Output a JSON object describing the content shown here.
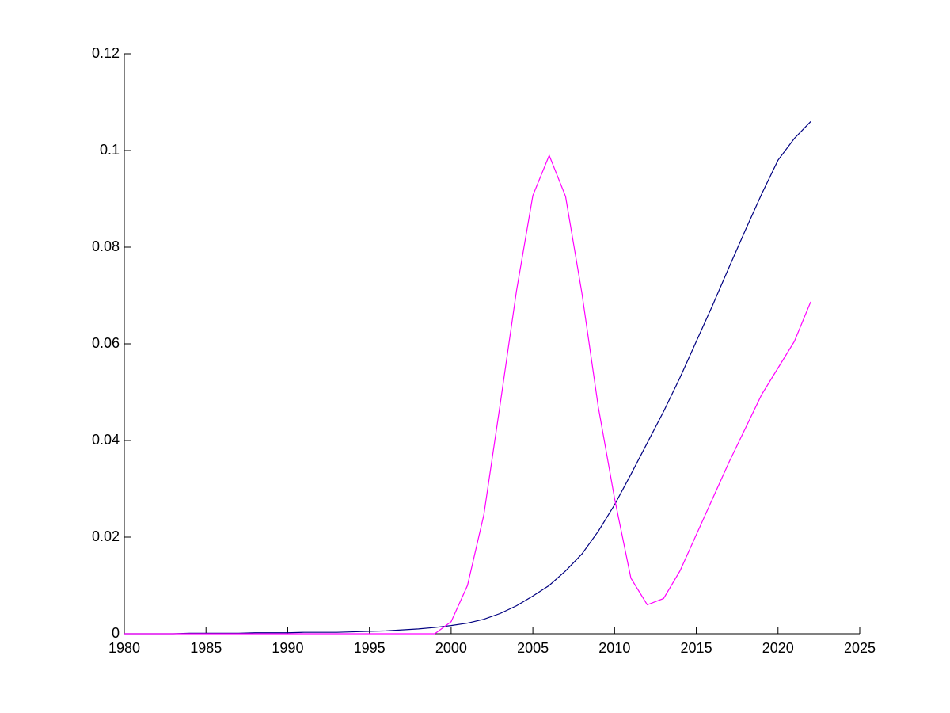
{
  "chart_data": {
    "type": "line",
    "x": [
      1980,
      1981,
      1982,
      1983,
      1984,
      1985,
      1986,
      1987,
      1988,
      1989,
      1990,
      1991,
      1992,
      1993,
      1994,
      1995,
      1996,
      1997,
      1998,
      1999,
      2000,
      2001,
      2002,
      2003,
      2004,
      2005,
      2006,
      2007,
      2008,
      2009,
      2010,
      2011,
      2012,
      2013,
      2014,
      2015,
      2016,
      2017,
      2018,
      2019,
      2020,
      2021,
      2022
    ],
    "series": [
      {
        "color": "#000080",
        "values": [
          0,
          0,
          0,
          0,
          0.0001,
          0.0001,
          0.0001,
          0.0001,
          0.0002,
          0.0002,
          0.0002,
          0.0003,
          0.0003,
          0.0003,
          0.0004,
          0.0005,
          0.0006,
          0.0008,
          0.001,
          0.0013,
          0.0017,
          0.0022,
          0.003,
          0.0042,
          0.0058,
          0.0078,
          0.01,
          0.013,
          0.0165,
          0.0212,
          0.0267,
          0.033,
          0.0395,
          0.046,
          0.053,
          0.0605,
          0.068,
          0.0758,
          0.0835,
          0.091,
          0.098,
          0.1025,
          0.106
        ]
      },
      {
        "color": "#ff00ff",
        "values": [
          0,
          0,
          0,
          0,
          0,
          0,
          0,
          0,
          0,
          0,
          0,
          0,
          0,
          0,
          0,
          0,
          0,
          0,
          0,
          0,
          0.0025,
          0.01,
          0.0246,
          0.0475,
          0.071,
          0.0907,
          0.099,
          0.0905,
          0.0705,
          0.047,
          0.028,
          0.0115,
          0.006,
          0.0073,
          0.013,
          0.0205,
          0.028,
          0.0355,
          0.0425,
          0.0495,
          0.055,
          0.0605,
          0.0687
        ]
      }
    ],
    "xlim": [
      1980,
      2025
    ],
    "xticks": [
      1980,
      1985,
      1990,
      1995,
      2000,
      2005,
      2010,
      2015,
      2020,
      2025
    ],
    "ylim": [
      0,
      0.12
    ],
    "yticks": [
      0,
      0.02,
      0.04,
      0.06,
      0.08,
      0.1,
      0.12
    ],
    "grid": false
  }
}
